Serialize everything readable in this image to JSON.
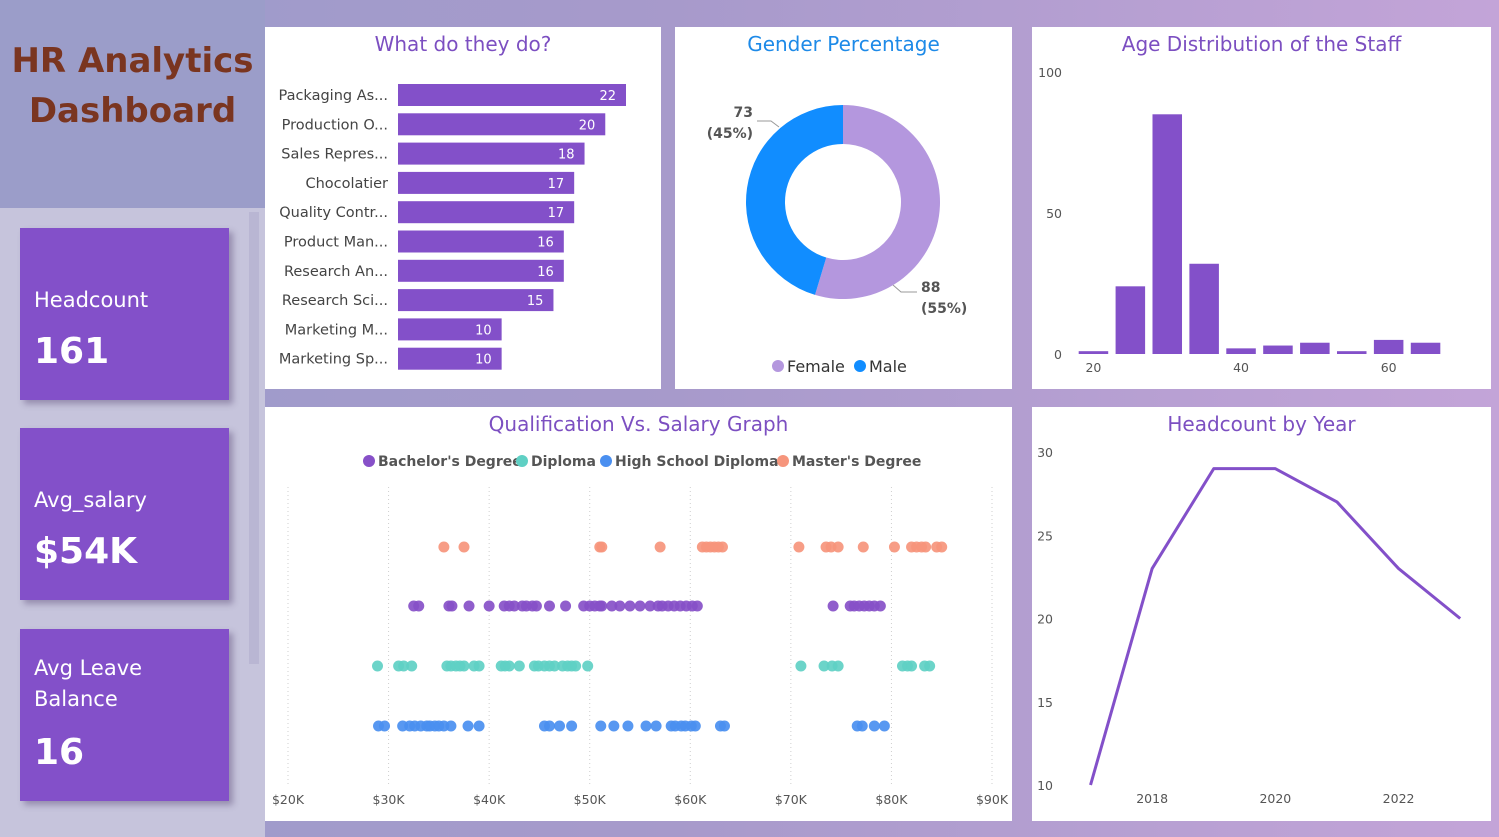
{
  "dashboard": {
    "title_line1": "HR Analytics",
    "title_line2": "Dashboard"
  },
  "kpis": [
    {
      "label": "Headcount",
      "value": "161"
    },
    {
      "label": "Avg_salary",
      "value": "$54K"
    },
    {
      "label_line1": "Avg Leave",
      "label_line2": "Balance",
      "value": "16"
    }
  ],
  "colors": {
    "accent": "#8350c9",
    "female": "#b497de",
    "male": "#118dff",
    "bachelor": "#8750c8",
    "diploma": "#5fd0c4",
    "high_school": "#4a8ff0",
    "masters": "#f6957c",
    "title_brown": "#7a3520"
  },
  "chart_data": [
    {
      "type": "bar",
      "orientation": "horizontal",
      "title": "What do they do?",
      "categories": [
        "Packaging As...",
        "Production O...",
        "Sales Repres...",
        "Chocolatier",
        "Quality Contr...",
        "Product Man...",
        "Research An...",
        "Research Sci...",
        "Marketing M...",
        "Marketing Sp..."
      ],
      "values": [
        22,
        20,
        18,
        17,
        17,
        16,
        16,
        15,
        10,
        10
      ],
      "data_labels": true
    },
    {
      "type": "pie",
      "variant": "donut",
      "title": "Gender Percentage",
      "slices": [
        {
          "name": "Female",
          "value": 88,
          "label_count": "88",
          "label_pct": "(55%)"
        },
        {
          "name": "Male",
          "value": 73,
          "label_count": "73",
          "label_pct": "(45%)"
        }
      ],
      "legend": "bottom"
    },
    {
      "type": "bar",
      "title": "Age Distribution of the Staff",
      "bin_width": 5,
      "x": [
        20,
        25,
        30,
        35,
        40,
        45,
        50,
        55,
        60,
        65
      ],
      "values": [
        1,
        24,
        85,
        32,
        2,
        3,
        4,
        1,
        5,
        4
      ],
      "xlim": [
        17.5,
        67.5
      ],
      "ylim": [
        0,
        100
      ],
      "x_ticks": [
        "20",
        "40",
        "60"
      ],
      "y_ticks": [
        "0",
        "50",
        "100"
      ]
    },
    {
      "type": "scatter",
      "title": "Qualification Vs. Salary Graph",
      "xlim": [
        20000,
        90000
      ],
      "x_ticks": [
        "$20K",
        "$30K",
        "$40K",
        "$50K",
        "$60K",
        "$70K",
        "$80K",
        "$90K"
      ],
      "legend": "top",
      "series": [
        {
          "name": "Master's Degree",
          "points": [
            35.5,
            37.5,
            51,
            51.2,
            57,
            61.2,
            61.6,
            62,
            62.4,
            62.8,
            63.2,
            70.8,
            73.5,
            74,
            74.7,
            77.2,
            80.3,
            82,
            82.5,
            83,
            83.4,
            84.5,
            85
          ]
        },
        {
          "name": "Bachelor's Degree",
          "points": [
            32.5,
            33,
            36,
            36.3,
            38,
            40,
            41.5,
            42,
            42.5,
            43.3,
            43.7,
            44.3,
            44.7,
            46,
            47.6,
            49.4,
            50,
            50.5,
            51,
            51.2,
            52.2,
            53,
            54,
            55,
            56,
            56.8,
            57.2,
            57.8,
            58.4,
            59,
            59.6,
            60.2,
            60.7,
            74.2,
            75.9,
            76.3,
            76.8,
            77.3,
            77.8,
            78.3,
            78.9
          ]
        },
        {
          "name": "Diploma",
          "points": [
            28.9,
            31,
            31.5,
            32.3,
            35.8,
            36.2,
            36.7,
            37.1,
            37.5,
            38.5,
            39,
            41.2,
            41.6,
            42,
            43,
            44.5,
            44.9,
            45.5,
            46,
            46.5,
            47.3,
            47.8,
            48.2,
            48.6,
            49.8,
            71,
            73.3,
            74.1,
            74.7,
            81.1,
            81.6,
            82,
            83.3,
            83.8
          ]
        },
        {
          "name": "High School Diploma",
          "points": [
            29,
            29.6,
            31.4,
            32.1,
            32.6,
            33.2,
            33.8,
            34.1,
            34.6,
            35,
            35.5,
            36.2,
            37.9,
            39,
            45.5,
            46,
            47,
            48.2,
            51.1,
            52.4,
            53.8,
            55.6,
            56.6,
            58.1,
            58.5,
            59.1,
            59.5,
            60.1,
            60.5,
            63,
            63.4,
            76.6,
            77.1,
            78.3,
            79.3
          ]
        }
      ]
    },
    {
      "type": "line",
      "title": "Headcount by Year",
      "x": [
        2017,
        2018,
        2019,
        2020,
        2021,
        2022,
        2023
      ],
      "values": [
        10,
        23,
        29,
        29,
        27,
        23,
        20
      ],
      "xlim": [
        2016.05,
        2023.5
      ],
      "ylim": [
        10,
        30
      ],
      "x_ticks": [
        "2018",
        "2020",
        "2022"
      ],
      "y_ticks": [
        "10",
        "15",
        "20",
        "25",
        "30"
      ]
    }
  ]
}
